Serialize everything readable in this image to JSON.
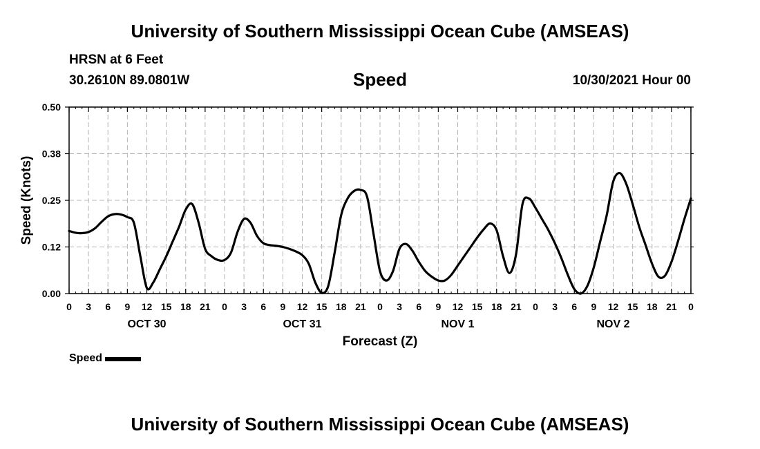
{
  "header": {
    "title": "University of Southern Mississippi Ocean Cube (AMSEAS)",
    "station": "HRSN at 6 Feet",
    "coords": "30.2610N  89.0801W",
    "chart_title": "Speed",
    "date": "10/30/2021 Hour 00"
  },
  "footer": {
    "title": "University of Southern Mississippi Ocean Cube (AMSEAS)"
  },
  "legend": {
    "label": "Speed"
  },
  "chart_data": {
    "type": "line",
    "title": "Speed",
    "xlabel": "Forecast (Z)",
    "ylabel": "Speed (Knots)",
    "ylim": [
      0,
      0.5
    ],
    "xlim": [
      0,
      96
    ],
    "grid": true,
    "y_ticks": [
      0.0,
      0.125,
      0.25,
      0.375,
      0.5
    ],
    "y_tick_labels": [
      "0.00",
      "0.12",
      "0.25",
      "0.38",
      "0.50"
    ],
    "x_ticks": [
      0,
      3,
      6,
      9,
      12,
      15,
      18,
      21,
      24,
      27,
      30,
      33,
      36,
      39,
      42,
      45,
      48,
      51,
      54,
      57,
      60,
      63,
      66,
      69,
      72,
      75,
      78,
      81,
      84,
      87,
      90,
      93,
      96
    ],
    "x_tick_labels": [
      "0",
      "3",
      "6",
      "9",
      "12",
      "15",
      "18",
      "21",
      "0",
      "3",
      "6",
      "9",
      "12",
      "15",
      "18",
      "21",
      "0",
      "3",
      "6",
      "9",
      "12",
      "15",
      "18",
      "21",
      "0",
      "3",
      "6",
      "9",
      "12",
      "15",
      "18",
      "21",
      "0"
    ],
    "day_labels": [
      {
        "x": 12,
        "label": "OCT 30"
      },
      {
        "x": 36,
        "label": "OCT 31"
      },
      {
        "x": 60,
        "label": "NOV 1"
      },
      {
        "x": 84,
        "label": "NOV 2"
      }
    ],
    "series": [
      {
        "name": "Speed",
        "color": "#000000",
        "x": [
          0,
          1,
          2,
          3,
          4,
          5,
          6,
          7,
          8,
          9,
          10,
          11,
          12,
          13,
          14,
          15,
          16,
          17,
          18,
          19,
          20,
          21,
          22,
          23,
          24,
          25,
          26,
          27,
          28,
          29,
          30,
          31,
          32,
          33,
          34,
          35,
          36,
          37,
          38,
          39,
          40,
          41,
          42,
          43,
          44,
          45,
          46,
          47,
          48,
          49,
          50,
          51,
          52,
          53,
          54,
          55,
          56,
          57,
          58,
          59,
          60,
          61,
          62,
          63,
          64,
          65,
          66,
          67,
          68,
          69,
          70,
          71,
          72,
          73,
          74,
          75,
          76,
          77,
          78,
          79,
          80,
          81,
          82,
          83,
          84,
          85,
          86,
          87,
          88,
          89,
          90,
          91,
          92,
          93,
          94,
          95,
          96
        ],
        "values": [
          0.168,
          0.163,
          0.162,
          0.165,
          0.175,
          0.192,
          0.207,
          0.213,
          0.212,
          0.205,
          0.19,
          0.1,
          0.015,
          0.03,
          0.065,
          0.1,
          0.14,
          0.18,
          0.225,
          0.24,
          0.19,
          0.12,
          0.1,
          0.09,
          0.09,
          0.11,
          0.165,
          0.2,
          0.19,
          0.155,
          0.135,
          0.13,
          0.128,
          0.125,
          0.12,
          0.113,
          0.103,
          0.08,
          0.03,
          0.002,
          0.02,
          0.11,
          0.21,
          0.255,
          0.275,
          0.278,
          0.26,
          0.16,
          0.06,
          0.035,
          0.06,
          0.12,
          0.133,
          0.115,
          0.085,
          0.06,
          0.045,
          0.035,
          0.035,
          0.05,
          0.075,
          0.1,
          0.125,
          0.15,
          0.172,
          0.188,
          0.17,
          0.1,
          0.055,
          0.105,
          0.24,
          0.255,
          0.23,
          0.2,
          0.17,
          0.135,
          0.095,
          0.05,
          0.012,
          0.0,
          0.02,
          0.07,
          0.14,
          0.21,
          0.3,
          0.323,
          0.295,
          0.24,
          0.18,
          0.13,
          0.08,
          0.045,
          0.048,
          0.085,
          0.14,
          0.2,
          0.255
        ]
      }
    ]
  }
}
